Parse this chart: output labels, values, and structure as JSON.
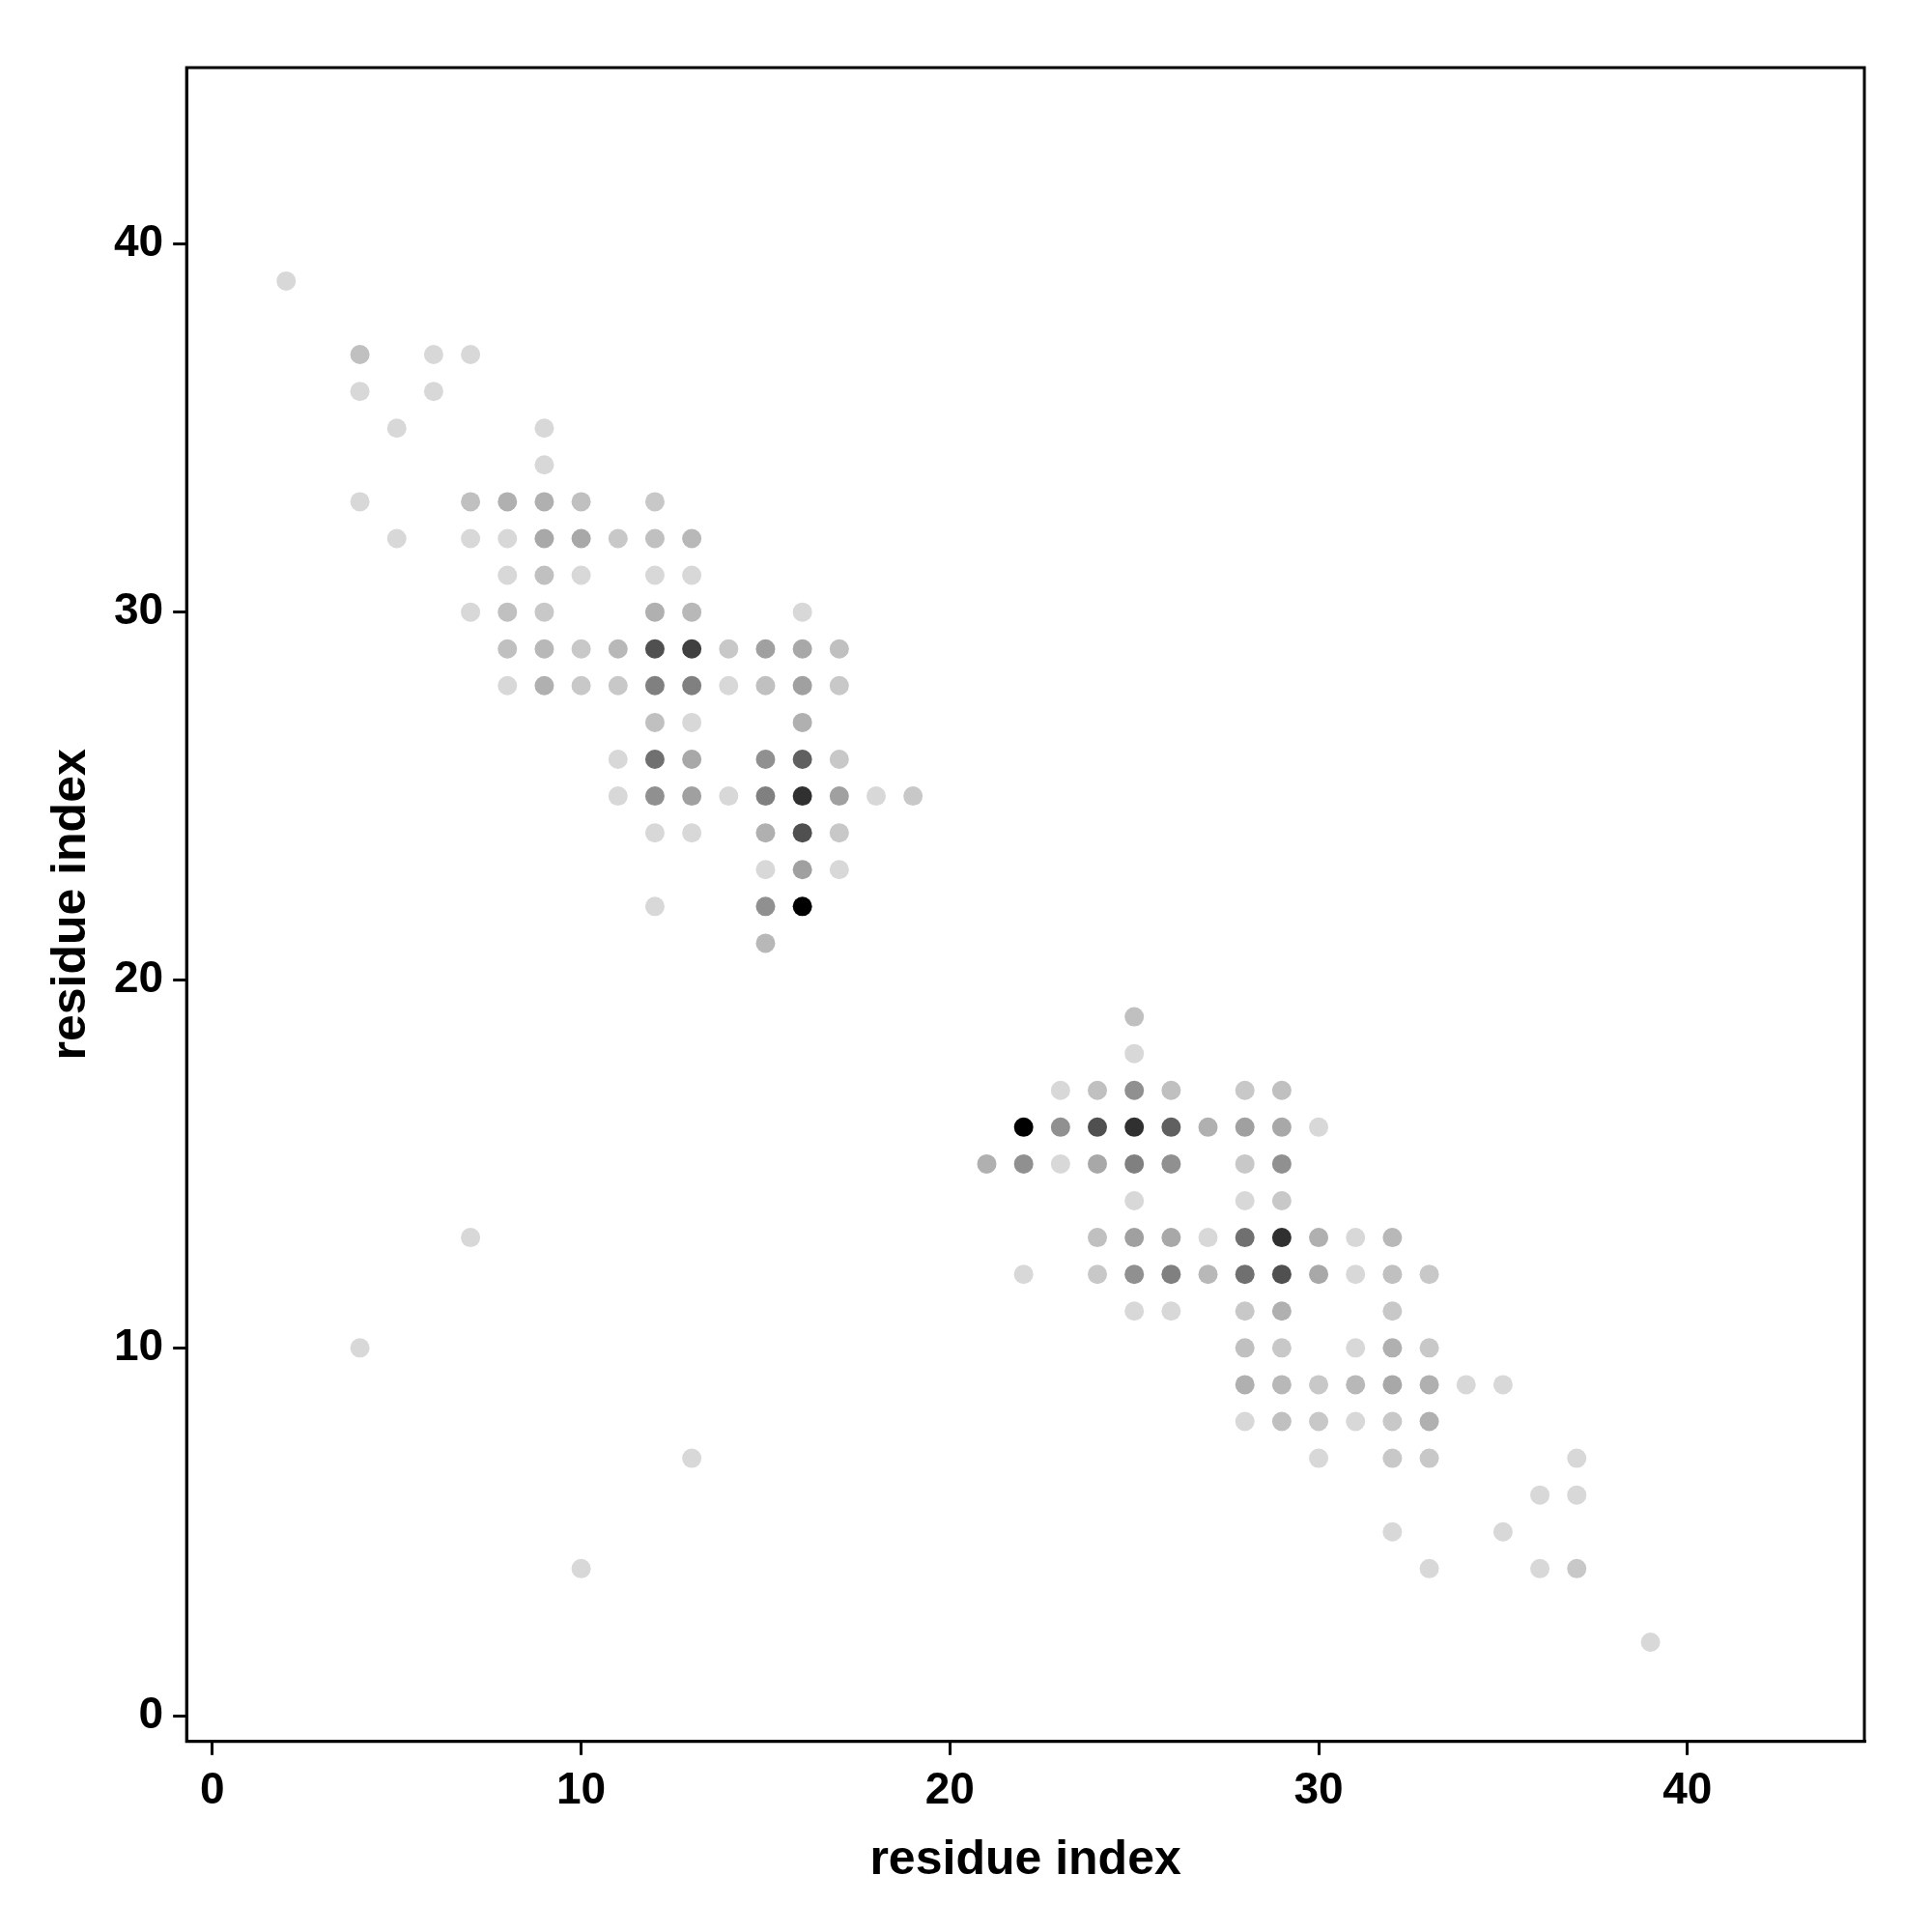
{
  "chart_data": {
    "type": "scatter",
    "xlabel": "residue index",
    "ylabel": "residue index",
    "xlim": [
      -0.7,
      44.8
    ],
    "ylim": [
      -0.7,
      44.8
    ],
    "xticks": [
      0,
      10,
      20,
      30,
      40
    ],
    "yticks": [
      0,
      10,
      20,
      30,
      40
    ],
    "grid": false,
    "legend": false,
    "marker": "circle",
    "series": [
      {
        "x": [
          2,
          4,
          6,
          7,
          4,
          6,
          5,
          9,
          9,
          4,
          7,
          8,
          9,
          10,
          12,
          5,
          7,
          8,
          9,
          10,
          11,
          12,
          13,
          8,
          9,
          10,
          12,
          13,
          7,
          8,
          9,
          12,
          13,
          16,
          8,
          9,
          10,
          11,
          12,
          13,
          14,
          15,
          16,
          17,
          8,
          9,
          10,
          11,
          12,
          13,
          14,
          15,
          16,
          17,
          12,
          13,
          16,
          11,
          12,
          13,
          15,
          16,
          17,
          11,
          12,
          13,
          14,
          15,
          16,
          17,
          18,
          19,
          12,
          13,
          15,
          16,
          17,
          15,
          16,
          17,
          12,
          15,
          16,
          15,
          25,
          25,
          23,
          24,
          25,
          26,
          28,
          29,
          22,
          23,
          24,
          25,
          26,
          27,
          28,
          29,
          30,
          21,
          22,
          23,
          24,
          25,
          26,
          28,
          29,
          25,
          28,
          29,
          7,
          24,
          25,
          26,
          27,
          28,
          29,
          30,
          31,
          32,
          22,
          24,
          25,
          26,
          27,
          28,
          29,
          30,
          31,
          32,
          33,
          25,
          26,
          28,
          29,
          32,
          4,
          28,
          29,
          31,
          32,
          33,
          28,
          29,
          30,
          31,
          32,
          33,
          34,
          35,
          28,
          29,
          30,
          31,
          32,
          33,
          13,
          30,
          32,
          33,
          37,
          36,
          37,
          32,
          35,
          10,
          33,
          36,
          37,
          39
        ],
        "values": [
          39,
          37,
          37,
          37,
          36,
          36,
          35,
          35,
          34,
          33,
          33,
          33,
          33,
          33,
          33,
          32,
          32,
          32,
          32,
          32,
          32,
          32,
          32,
          31,
          31,
          31,
          31,
          31,
          30,
          30,
          30,
          30,
          30,
          30,
          29,
          29,
          29,
          29,
          29,
          29,
          29,
          29,
          29,
          29,
          28,
          28,
          28,
          28,
          28,
          28,
          28,
          28,
          28,
          28,
          27,
          27,
          27,
          26,
          26,
          26,
          26,
          26,
          26,
          25,
          25,
          25,
          25,
          25,
          25,
          25,
          25,
          25,
          24,
          24,
          24,
          24,
          24,
          23,
          23,
          23,
          22,
          22,
          22,
          21,
          19,
          18,
          17,
          17,
          17,
          17,
          17,
          17,
          16,
          16,
          16,
          16,
          16,
          16,
          16,
          16,
          16,
          15,
          15,
          15,
          15,
          15,
          15,
          15,
          15,
          14,
          14,
          14,
          13,
          13,
          13,
          13,
          13,
          13,
          13,
          13,
          13,
          13,
          12,
          12,
          12,
          12,
          12,
          12,
          12,
          12,
          12,
          12,
          12,
          11,
          11,
          11,
          11,
          11,
          10,
          10,
          10,
          10,
          10,
          10,
          9,
          9,
          9,
          9,
          9,
          9,
          9,
          9,
          8,
          8,
          8,
          8,
          8,
          8,
          7,
          7,
          7,
          7,
          7,
          6,
          6,
          5,
          5,
          4,
          4,
          4,
          4,
          2
        ],
        "colors": [
          "#d8d8d8",
          "#c0c0c0",
          "#d8d8d8",
          "#d8d8d8",
          "#d8d8d8",
          "#d8d8d8",
          "#d8d8d8",
          "#d8d8d8",
          "#d8d8d8",
          "#d8d8d8",
          "#c0c0c0",
          "#b0b0b0",
          "#b0b0b0",
          "#c0c0c0",
          "#c8c8c8",
          "#d8d8d8",
          "#d8d8d8",
          "#d8d8d8",
          "#a8a8a8",
          "#a8a8a8",
          "#c8c8c8",
          "#c0c0c0",
          "#b8b8b8",
          "#d8d8d8",
          "#c0c0c0",
          "#d8d8d8",
          "#d8d8d8",
          "#d8d8d8",
          "#d8d8d8",
          "#c0c0c0",
          "#c8c8c8",
          "#b0b0b0",
          "#b8b8b8",
          "#d8d8d8",
          "#c0c0c0",
          "#b8b8b8",
          "#c8c8c8",
          "#b8b8b8",
          "#505050",
          "#404040",
          "#c8c8c8",
          "#a0a0a0",
          "#a8a8a8",
          "#c0c0c0",
          "#d8d8d8",
          "#b0b0b0",
          "#c8c8c8",
          "#c8c8c8",
          "#808080",
          "#808080",
          "#d8d8d8",
          "#c0c0c0",
          "#a0a0a0",
          "#c8c8c8",
          "#c0c0c0",
          "#d8d8d8",
          "#b0b0b0",
          "#d8d8d8",
          "#707070",
          "#a8a8a8",
          "#909090",
          "#606060",
          "#c8c8c8",
          "#d8d8d8",
          "#909090",
          "#a0a0a0",
          "#d8d8d8",
          "#808080",
          "#303030",
          "#a0a0a0",
          "#d8d8d8",
          "#c8c8c8",
          "#d8d8d8",
          "#d8d8d8",
          "#b0b0b0",
          "#505050",
          "#c8c8c8",
          "#d8d8d8",
          "#a0a0a0",
          "#d8d8d8",
          "#d8d8d8",
          "#909090",
          "#000000",
          "#b8b8b8",
          "#c0c0c0",
          "#d8d8d8",
          "#d8d8d8",
          "#c0c0c0",
          "#909090",
          "#c0c0c0",
          "#c8c8c8",
          "#c0c0c0",
          "#000000",
          "#909090",
          "#505050",
          "#303030",
          "#606060",
          "#b0b0b0",
          "#a0a0a0",
          "#a8a8a8",
          "#d8d8d8",
          "#b0b0b0",
          "#909090",
          "#d8d8d8",
          "#a8a8a8",
          "#808080",
          "#909090",
          "#c8c8c8",
          "#909090",
          "#d8d8d8",
          "#d8d8d8",
          "#c8c8c8",
          "#d8d8d8",
          "#c0c0c0",
          "#a0a0a0",
          "#a8a8a8",
          "#d8d8d8",
          "#707070",
          "#303030",
          "#b0b0b0",
          "#d8d8d8",
          "#b8b8b8",
          "#d8d8d8",
          "#c8c8c8",
          "#909090",
          "#808080",
          "#b8b8b8",
          "#707070",
          "#505050",
          "#a8a8a8",
          "#d8d8d8",
          "#c0c0c0",
          "#c8c8c8",
          "#d8d8d8",
          "#d8d8d8",
          "#c8c8c8",
          "#b0b0b0",
          "#c8c8c8",
          "#d8d8d8",
          "#c0c0c0",
          "#c8c8c8",
          "#d8d8d8",
          "#b0b0b0",
          "#c8c8c8",
          "#b0b0b0",
          "#b8b8b8",
          "#c8c8c8",
          "#b8b8b8",
          "#a8a8a8",
          "#b0b0b0",
          "#d8d8d8",
          "#d8d8d8",
          "#d8d8d8",
          "#c0c0c0",
          "#c8c8c8",
          "#d8d8d8",
          "#c8c8c8",
          "#b0b0b0",
          "#d8d8d8",
          "#d8d8d8",
          "#c8c8c8",
          "#c8c8c8",
          "#d8d8d8",
          "#d8d8d8",
          "#d8d8d8",
          "#d8d8d8",
          "#d8d8d8",
          "#d8d8d8",
          "#d8d8d8",
          "#d8d8d8",
          "#c8c8c8",
          "#d8d8d8"
        ]
      }
    ]
  }
}
